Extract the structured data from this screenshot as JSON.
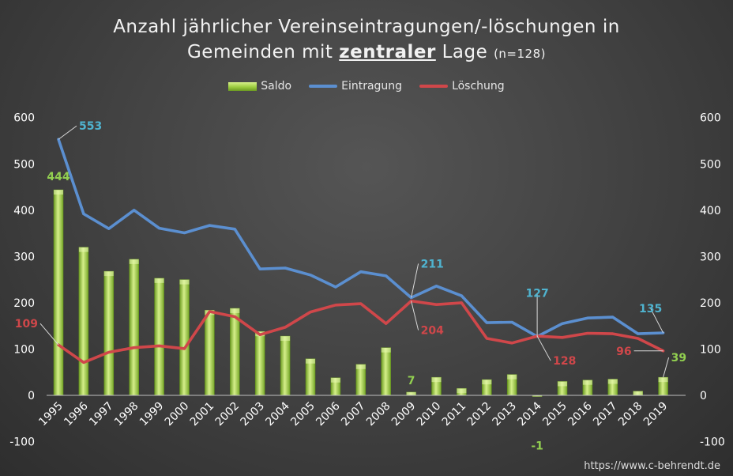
{
  "title_line1": "Anzahl jährlicher Vereinseintragungen/-löschungen in",
  "title_line2_prefix": "Gemeinden mit ",
  "title_line2_bold": "zentraler",
  "title_line2_suffix": " Lage ",
  "title_line2_small": "(n=128)",
  "footer": "https://www.c-behrendt.de",
  "colors": {
    "saldo": "#9ccc40",
    "eintragung": "#5b8fd0",
    "loeschung": "#d0474a"
  },
  "chart_data": {
    "type": "bar",
    "categories": [
      "1995",
      "1996",
      "1997",
      "1998",
      "1999",
      "2000",
      "2001",
      "2002",
      "2003",
      "2004",
      "2005",
      "2006",
      "2007",
      "2008",
      "2009",
      "2010",
      "2011",
      "2012",
      "2013",
      "2014",
      "2015",
      "2016",
      "2017",
      "2018",
      "2019"
    ],
    "series": [
      {
        "name": "Saldo",
        "type": "bar",
        "values": [
          444,
          320,
          268,
          294,
          253,
          250,
          184,
          188,
          138,
          128,
          79,
          38,
          67,
          103,
          7,
          39,
          15,
          34,
          45,
          -1,
          30,
          33,
          35,
          9,
          39
        ]
      },
      {
        "name": "Eintragung",
        "type": "line",
        "values": [
          553,
          392,
          360,
          400,
          361,
          351,
          367,
          359,
          273,
          275,
          260,
          234,
          267,
          258,
          211,
          236,
          215,
          157,
          158,
          127,
          155,
          167,
          169,
          133,
          135
        ]
      },
      {
        "name": "Löschung",
        "type": "line",
        "values": [
          109,
          71,
          93,
          103,
          107,
          101,
          181,
          170,
          131,
          147,
          180,
          195,
          198,
          155,
          204,
          196,
          200,
          123,
          113,
          128,
          125,
          134,
          133,
          123,
          96
        ]
      }
    ],
    "data_labels": [
      {
        "series": "Eintragung",
        "index": 0,
        "text": "553"
      },
      {
        "series": "Saldo",
        "index": 0,
        "text": "444"
      },
      {
        "series": "Löschung",
        "index": 0,
        "text": "109"
      },
      {
        "series": "Eintragung",
        "index": 14,
        "text": "211"
      },
      {
        "series": "Löschung",
        "index": 14,
        "text": "204"
      },
      {
        "series": "Saldo",
        "index": 14,
        "text": "7"
      },
      {
        "series": "Eintragung",
        "index": 19,
        "text": "127"
      },
      {
        "series": "Löschung",
        "index": 19,
        "text": "128"
      },
      {
        "series": "Saldo",
        "index": 19,
        "text": "-1"
      },
      {
        "series": "Eintragung",
        "index": 24,
        "text": "135"
      },
      {
        "series": "Löschung",
        "index": 24,
        "text": "96"
      },
      {
        "series": "Saldo",
        "index": 24,
        "text": "39"
      }
    ],
    "yticks": [
      "-100",
      "0",
      "100",
      "200",
      "300",
      "400",
      "500",
      "600"
    ],
    "ylim": [
      -100,
      600
    ],
    "y2lim": [
      -100,
      600
    ],
    "legend_position": "top",
    "grid": false
  }
}
